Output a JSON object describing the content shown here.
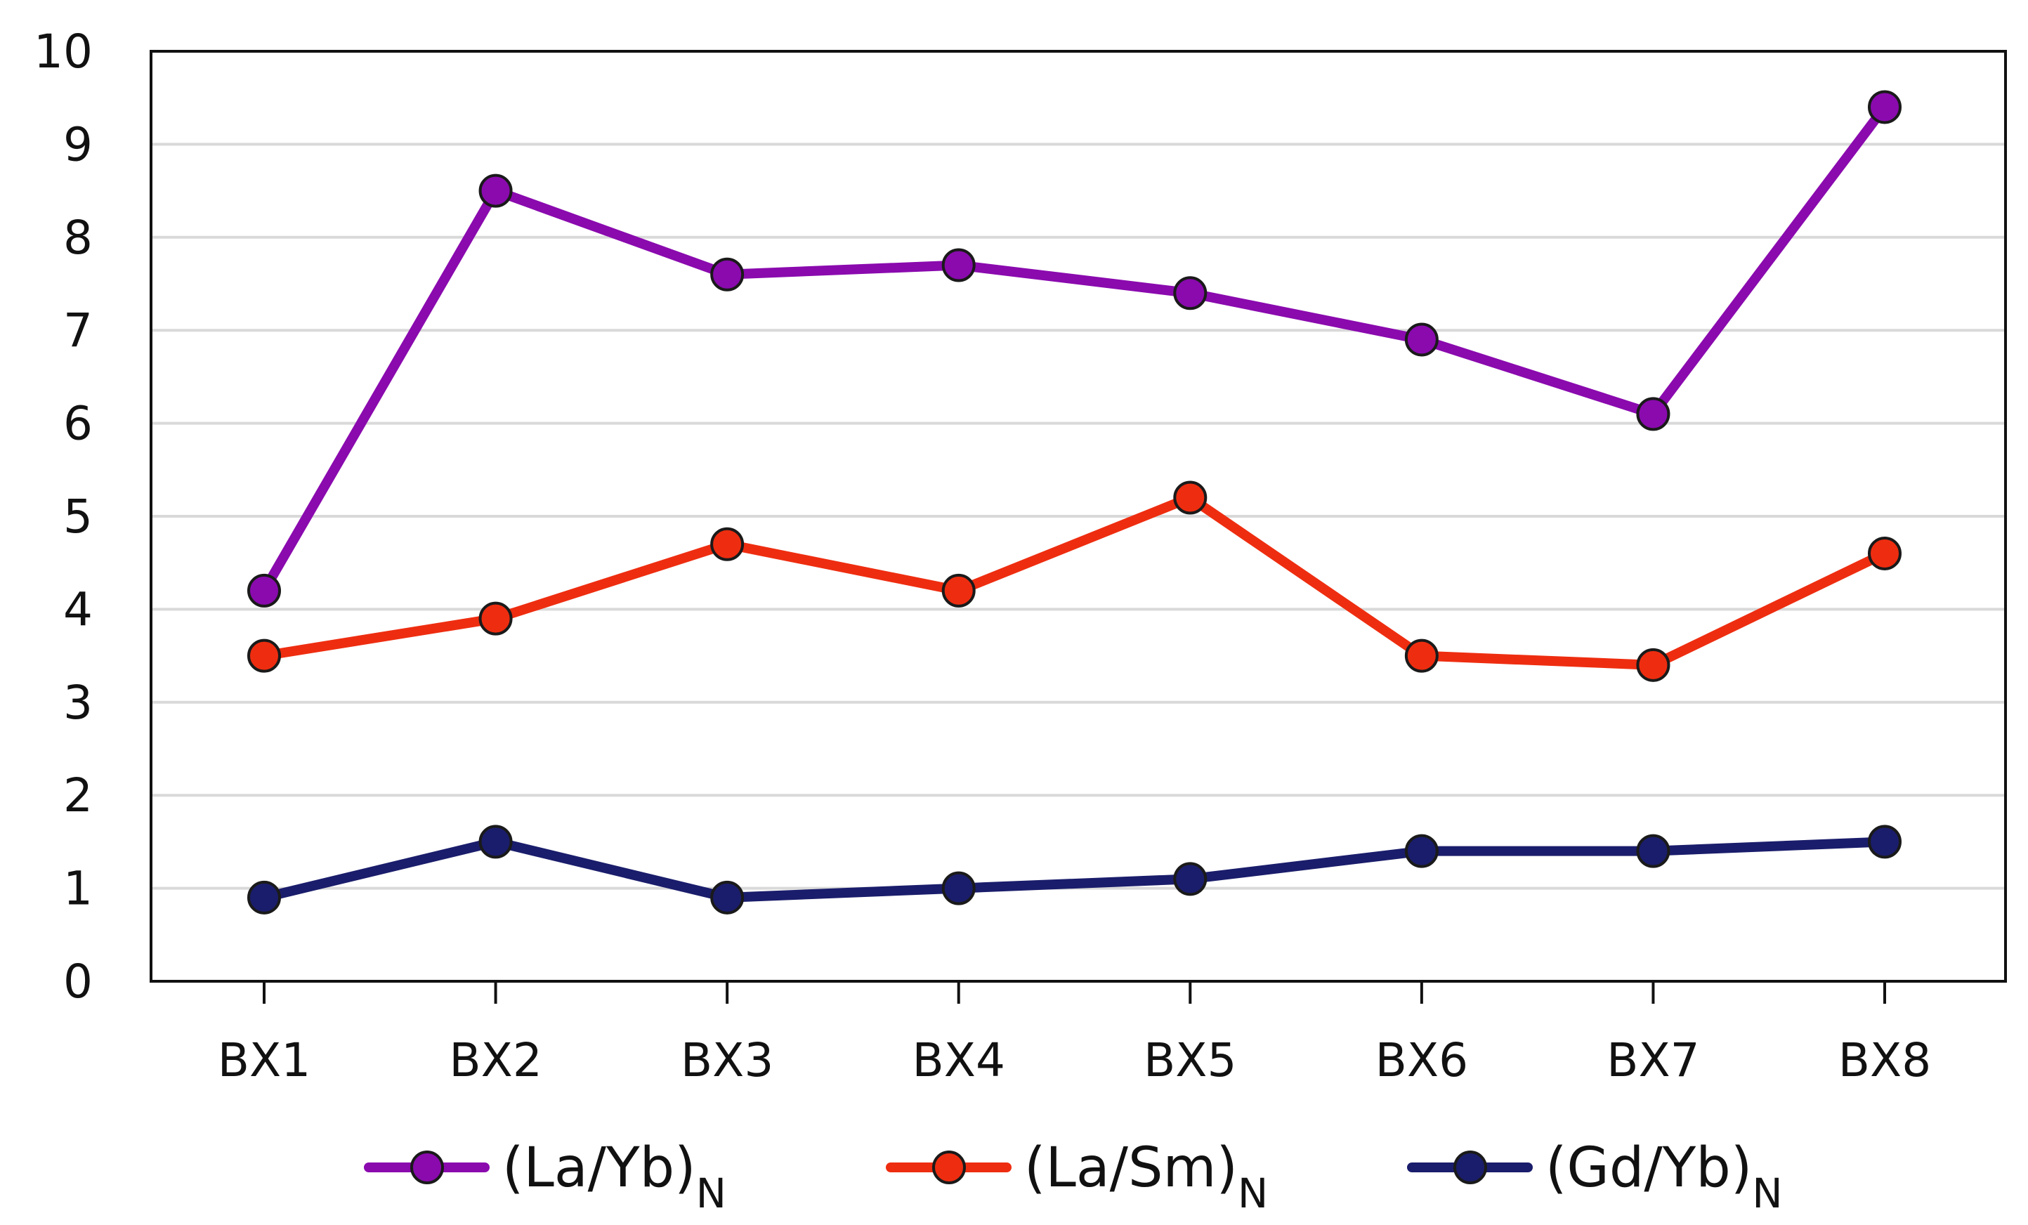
{
  "chart_data": {
    "type": "line",
    "title": "",
    "xlabel": "",
    "ylabel": "",
    "categories": [
      "BX1",
      "BX2",
      "BX3",
      "BX4",
      "BX5",
      "BX6",
      "BX7",
      "BX8"
    ],
    "ylim": [
      0,
      10
    ],
    "yticks": [
      "0",
      "1",
      "2",
      "3",
      "4",
      "5",
      "6",
      "7",
      "8",
      "9",
      "10"
    ],
    "grid": true,
    "legend_position": "bottom",
    "series": [
      {
        "name": "(La/Yb)",
        "subscript": "N",
        "color": "#8a0aae",
        "values": [
          4.2,
          8.5,
          7.6,
          7.7,
          7.4,
          6.9,
          6.1,
          9.4
        ]
      },
      {
        "name": "(La/Sm)",
        "subscript": "N",
        "color": "#ee2d10",
        "values": [
          3.5,
          3.9,
          4.7,
          4.2,
          5.2,
          3.5,
          3.4,
          4.6
        ]
      },
      {
        "name": "(Gd/Yb)",
        "subscript": "N",
        "color": "#1a1d6b",
        "values": [
          0.9,
          1.5,
          0.9,
          1.0,
          1.1,
          1.4,
          1.4,
          1.5
        ]
      }
    ]
  }
}
